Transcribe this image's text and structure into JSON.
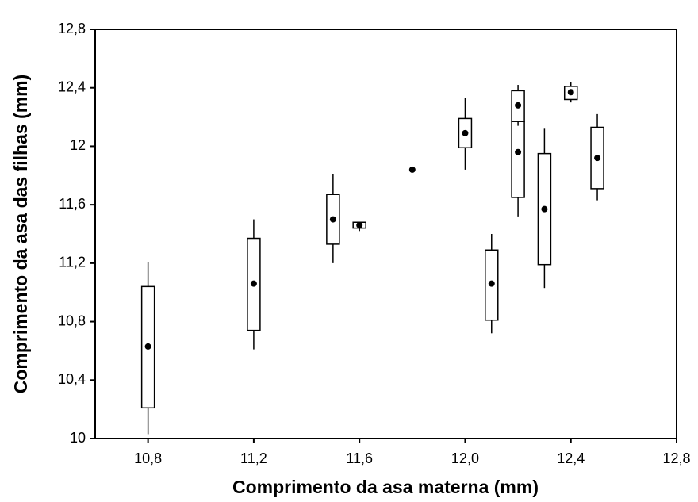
{
  "chart_data": {
    "type": "box",
    "x_label": "Comprimento da asa materna (mm)",
    "y_label": "Comprimento da asa das filhas (mm)",
    "x": [
      10.8,
      11.2,
      11.5,
      11.6,
      11.8,
      12.0,
      12.1,
      12.2,
      12.2,
      12.3,
      12.4,
      12.5
    ],
    "whisker_low": [
      10.03,
      10.61,
      11.2,
      11.42,
      11.84,
      11.84,
      10.72,
      12.14,
      11.52,
      11.03,
      12.3,
      11.63
    ],
    "box_low": [
      10.21,
      10.74,
      11.33,
      11.44,
      11.84,
      11.99,
      10.81,
      12.17,
      11.65,
      11.19,
      12.32,
      11.71
    ],
    "box_high": [
      11.04,
      11.37,
      11.67,
      11.48,
      11.84,
      12.19,
      11.29,
      12.38,
      12.17,
      11.95,
      12.41,
      12.13
    ],
    "whisker_high": [
      11.21,
      11.5,
      11.81,
      11.48,
      11.84,
      12.33,
      11.4,
      12.42,
      12.17,
      12.12,
      12.44,
      12.22
    ],
    "mean": [
      10.63,
      11.06,
      11.5,
      11.46,
      11.84,
      12.09,
      11.06,
      12.28,
      11.96,
      11.57,
      12.37,
      11.92
    ],
    "color": "#000000",
    "xlim": [
      10.6,
      12.8
    ],
    "xticks": [
      {
        "value": 10.8,
        "label": "10,8"
      },
      {
        "value": 11.2,
        "label": "11,2"
      },
      {
        "value": 11.6,
        "label": "11,6"
      },
      {
        "value": 12.0,
        "label": "12,0"
      },
      {
        "value": 12.4,
        "label": "12,4"
      },
      {
        "value": 12.8,
        "label": "12,8"
      }
    ],
    "ylim": [
      10,
      12.8
    ],
    "yticks": [
      10,
      {
        "value": 10.4,
        "label": "10,4"
      },
      {
        "value": 10.8,
        "label": "10,8"
      },
      {
        "value": 11.2,
        "label": "11,2"
      },
      {
        "value": 11.6,
        "label": "11,6"
      },
      12,
      {
        "value": 12.4,
        "label": "12,4"
      },
      {
        "value": 12.8,
        "label": "12,8"
      }
    ],
    "grid": false
  }
}
